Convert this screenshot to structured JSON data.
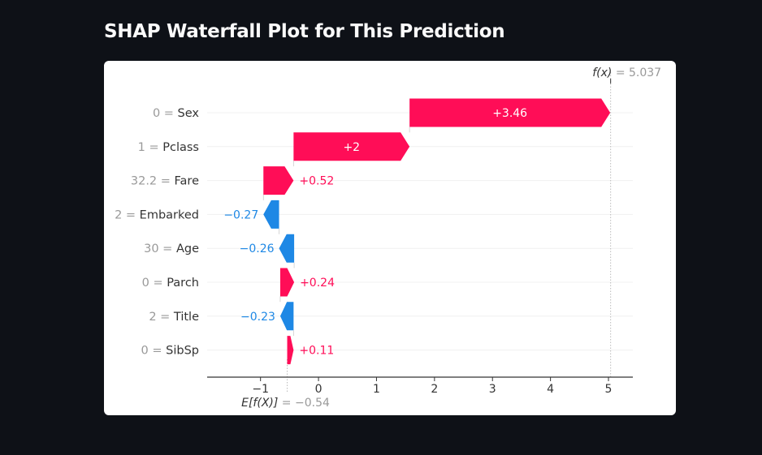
{
  "page": {
    "title": "SHAP Waterfall Plot for This Prediction"
  },
  "colors": {
    "background": "#0e1117",
    "card": "#ffffff",
    "positive": "#ff0d57",
    "negative": "#1e88e5",
    "muted_text": "#999999",
    "text": "#333333"
  },
  "chart_data": {
    "type": "waterfall",
    "base_value": -0.54,
    "base_label": "E[f(X)]",
    "base_value_text": "= −0.54",
    "output_value": 5.037,
    "output_label": "f(x)",
    "output_value_text": "= 5.037",
    "xlim": [
      -1.92,
      5.42
    ],
    "xticks": [
      -1,
      0,
      1,
      2,
      3,
      4,
      5
    ],
    "xtick_labels": [
      "−1",
      "0",
      "1",
      "2",
      "3",
      "4",
      "5"
    ],
    "features": [
      {
        "value": "0",
        "name": "Sex",
        "shap": 3.46,
        "label": "+3.46",
        "label_inside": true
      },
      {
        "value": "1",
        "name": "Pclass",
        "shap": 2.0,
        "label": "+2",
        "label_inside": true
      },
      {
        "value": "32.2",
        "name": "Fare",
        "shap": 0.52,
        "label": "+0.52",
        "label_inside": false
      },
      {
        "value": "2",
        "name": "Embarked",
        "shap": -0.27,
        "label": "−0.27",
        "label_inside": false
      },
      {
        "value": "30",
        "name": "Age",
        "shap": -0.26,
        "label": "−0.26",
        "label_inside": false
      },
      {
        "value": "0",
        "name": "Parch",
        "shap": 0.24,
        "label": "+0.24",
        "label_inside": false
      },
      {
        "value": "2",
        "name": "Title",
        "shap": -0.23,
        "label": "−0.23",
        "label_inside": false
      },
      {
        "value": "0",
        "name": "SibSp",
        "shap": 0.11,
        "label": "+0.11",
        "label_inside": false
      }
    ]
  }
}
